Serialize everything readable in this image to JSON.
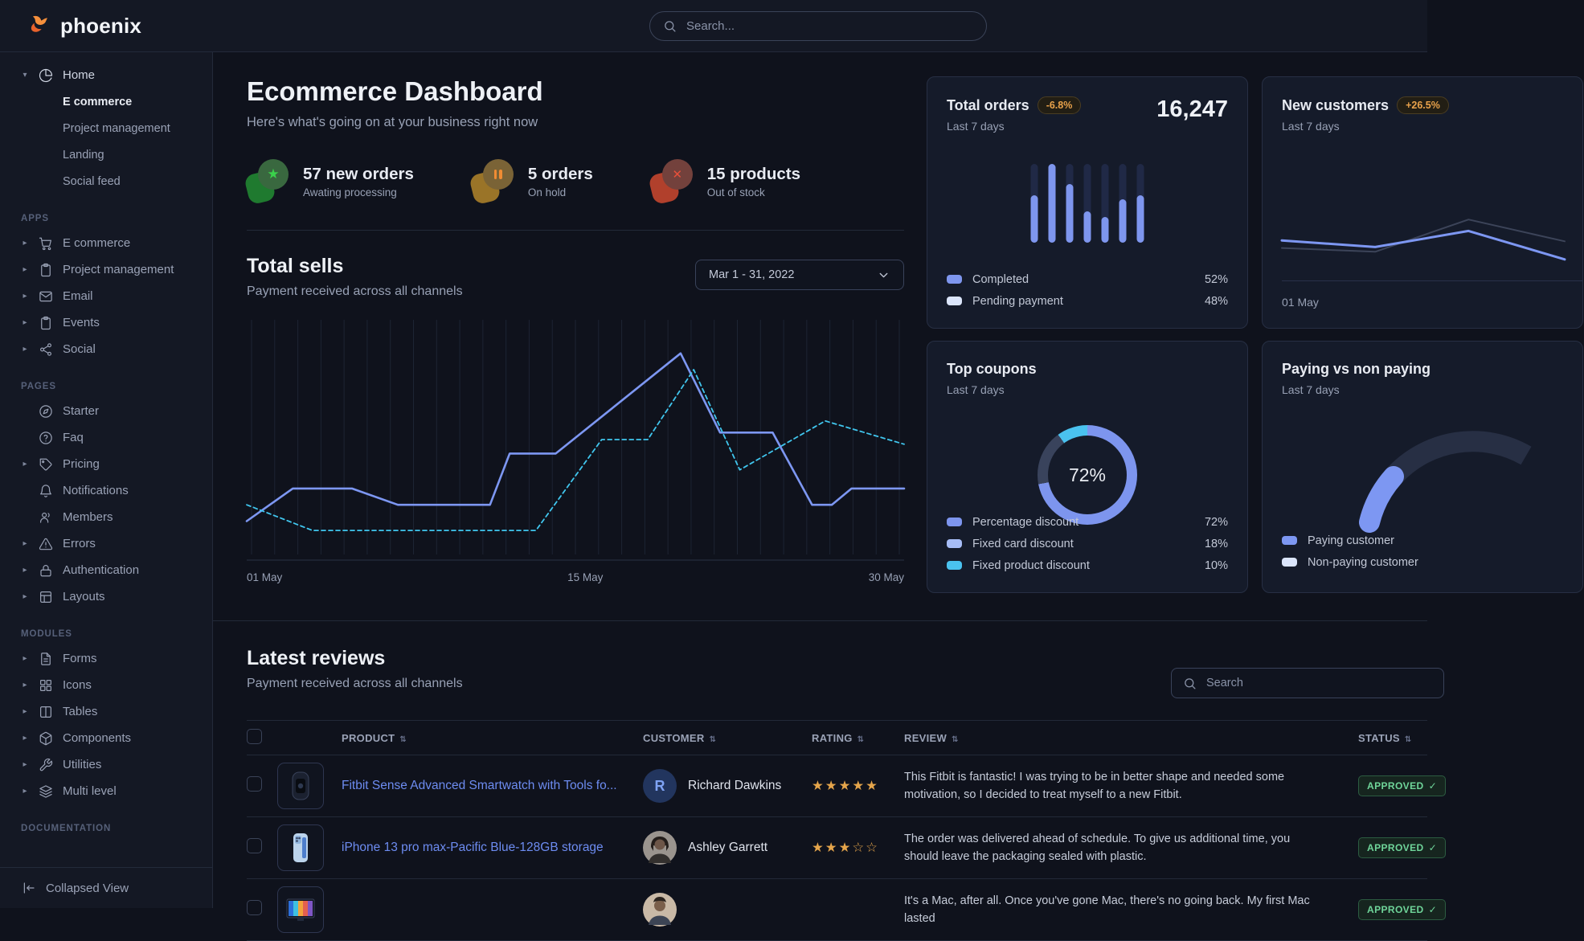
{
  "brand": {
    "name": "phoenix"
  },
  "navbar": {
    "search_placeholder": "Search..."
  },
  "sidebar": {
    "home": {
      "label": "Home",
      "icon": "pie-chart-icon",
      "children": [
        {
          "label": "E commerce",
          "active": true
        },
        {
          "label": "Project management",
          "active": false
        },
        {
          "label": "Landing",
          "active": false
        },
        {
          "label": "Social feed",
          "active": false
        }
      ]
    },
    "sections": [
      {
        "label": "APPS",
        "items": [
          {
            "label": "E commerce",
            "icon": "cart-icon",
            "caret": true
          },
          {
            "label": "Project management",
            "icon": "clipboard-icon",
            "caret": true
          },
          {
            "label": "Email",
            "icon": "mail-icon",
            "caret": true
          },
          {
            "label": "Events",
            "icon": "clipboard-icon",
            "caret": true
          },
          {
            "label": "Social",
            "icon": "share-icon",
            "caret": true
          }
        ]
      },
      {
        "label": "PAGES",
        "items": [
          {
            "label": "Starter",
            "icon": "compass-icon",
            "caret": false
          },
          {
            "label": "Faq",
            "icon": "help-circle-icon",
            "caret": false
          },
          {
            "label": "Pricing",
            "icon": "tag-icon",
            "caret": true
          },
          {
            "label": "Notifications",
            "icon": "bell-icon",
            "caret": false
          },
          {
            "label": "Members",
            "icon": "users-icon",
            "caret": false
          },
          {
            "label": "Errors",
            "icon": "alert-triangle-icon",
            "caret": true
          },
          {
            "label": "Authentication",
            "icon": "lock-icon",
            "caret": true
          },
          {
            "label": "Layouts",
            "icon": "layout-icon",
            "caret": true
          }
        ]
      },
      {
        "label": "MODULES",
        "items": [
          {
            "label": "Forms",
            "icon": "file-text-icon",
            "caret": true
          },
          {
            "label": "Icons",
            "icon": "grid-icon",
            "caret": true
          },
          {
            "label": "Tables",
            "icon": "columns-icon",
            "caret": true
          },
          {
            "label": "Components",
            "icon": "box-icon",
            "caret": true
          },
          {
            "label": "Utilities",
            "icon": "wrench-icon",
            "caret": true
          },
          {
            "label": "Multi level",
            "icon": "layers-icon",
            "caret": true
          }
        ]
      },
      {
        "label": "DOCUMENTATION",
        "items": []
      }
    ],
    "footer": {
      "label": "Collapsed View",
      "icon": "collapse-left-icon"
    }
  },
  "page": {
    "title": "Ecommerce Dashboard",
    "subtitle": "Here's what's going on at your business right now"
  },
  "stats": [
    {
      "title": "57 new orders",
      "subtitle": "Awating processing",
      "icon": "star-icon",
      "theme": "green"
    },
    {
      "title": "5 orders",
      "subtitle": "On hold",
      "icon": "pause-icon",
      "theme": "orange"
    },
    {
      "title": "15 products",
      "subtitle": "Out of stock",
      "icon": "x-icon",
      "theme": "red"
    }
  ],
  "total_sells": {
    "title": "Total sells",
    "subtitle": "Payment received across all channels",
    "date_range": "Mar 1 - 31, 2022",
    "chart_data": {
      "type": "line",
      "x_ticks": [
        "01 May",
        "15 May",
        "30 May"
      ],
      "gridlines": 29,
      "grid_color": "#1d2433",
      "series": [
        {
          "name": "current",
          "style": "solid",
          "color": "#7d97f2",
          "points": [
            [
              0,
              85
            ],
            [
              7,
              71
            ],
            [
              16,
              71
            ],
            [
              23,
              78
            ],
            [
              37,
              78
            ],
            [
              40,
              56
            ],
            [
              47,
              56
            ],
            [
              66,
              13
            ],
            [
              72,
              47
            ],
            [
              80,
              47
            ],
            [
              86,
              78
            ],
            [
              89,
              78
            ],
            [
              92,
              71
            ],
            [
              100,
              71
            ]
          ]
        },
        {
          "name": "previous",
          "style": "dashed",
          "color": "#40c6ee",
          "points": [
            [
              0,
              78
            ],
            [
              10,
              89
            ],
            [
              44,
              89
            ],
            [
              54,
              50
            ],
            [
              61,
              50
            ],
            [
              68,
              20
            ],
            [
              75,
              63
            ],
            [
              88,
              42
            ],
            [
              100,
              52
            ]
          ]
        }
      ]
    }
  },
  "cards": {
    "total_orders": {
      "title": "Total orders",
      "badge": "-6.8%",
      "period": "Last 7 days",
      "value": "16,247",
      "chart_data": {
        "type": "bar",
        "values": [
          60,
          100,
          75,
          40,
          33,
          55,
          60
        ],
        "ylim": [
          0,
          100
        ],
        "fill_color": "#7e96ee",
        "track_color": "#202946"
      },
      "legend": [
        {
          "label": "Completed",
          "value": "52%",
          "color": "#7e96ee"
        },
        {
          "label": "Pending payment",
          "value": "48%",
          "color": "#dbe5fb"
        }
      ]
    },
    "new_customers": {
      "title": "New customers",
      "badge": "+26.5%",
      "period": "Last 7 days",
      "x_label": "01 May",
      "chart_data": {
        "type": "line",
        "series": [
          {
            "name": "previous",
            "color": "#3c4459",
            "points": [
              [
                0,
                70
              ],
              [
                33,
                74
              ],
              [
                66,
                40
              ],
              [
                100,
                63
              ]
            ]
          },
          {
            "name": "current",
            "color": "#7d97f2",
            "points": [
              [
                0,
                62
              ],
              [
                33,
                69
              ],
              [
                66,
                52
              ],
              [
                100,
                82
              ]
            ]
          }
        ]
      }
    },
    "top_coupons": {
      "title": "Top coupons",
      "period": "Last 7 days",
      "center_value": "72%",
      "chart_data": {
        "type": "pie",
        "slices": [
          {
            "label": "Percentage discount",
            "value": 72,
            "ring_color": "#7d95ee"
          },
          {
            "label": "Fixed card discount",
            "value": 18,
            "ring_color": "#39435c"
          },
          {
            "label": "Fixed product discount",
            "value": 10,
            "ring_color": "#4ac2ef"
          }
        ]
      },
      "legend": [
        {
          "label": "Percentage discount",
          "value": "72%",
          "color": "#7d95ee"
        },
        {
          "label": "Fixed card discount",
          "value": "18%",
          "color": "#a7bdf7"
        },
        {
          "label": "Fixed product discount",
          "value": "10%",
          "color": "#4ac2ef"
        }
      ]
    },
    "paying_vs_non_paying": {
      "title": "Paying vs non paying",
      "period": "Last 7 days",
      "chart_data": {
        "type": "pie",
        "slices": [
          {
            "label": "Paying customer",
            "ring_color": "#7d97f2"
          },
          {
            "label": "Non-paying customer",
            "ring_color": "#272f44"
          }
        ]
      },
      "legend": [
        {
          "label": "Paying customer",
          "color": "#7d97f2"
        },
        {
          "label": "Non-paying customer",
          "color": "#dbe5fb"
        }
      ]
    }
  },
  "reviews": {
    "title": "Latest reviews",
    "subtitle": "Payment received across all channels",
    "search_placeholder": "Search",
    "columns": [
      "PRODUCT",
      "CUSTOMER",
      "RATING",
      "REVIEW",
      "STATUS"
    ],
    "rows": [
      {
        "product": "Fitbit Sense Advanced Smartwatch with Tools fo...",
        "image": "smartwatch-thumb",
        "customer": "Richard Dawkins",
        "avatar": "initial-R",
        "stars": "★★★★★",
        "review": "This Fitbit is fantastic! I was trying to be in better shape and needed some motivation, so I decided to treat myself to a new Fitbit.",
        "status": "APPROVED"
      },
      {
        "product": "iPhone 13 pro max-Pacific Blue-128GB storage",
        "image": "iphone-thumb",
        "customer": "Ashley Garrett",
        "avatar": "photo-woman",
        "stars": "★★★☆☆",
        "review": "The order was delivered ahead of schedule. To give us additional time, you should leave the packaging sealed with plastic.",
        "status": "APPROVED"
      },
      {
        "product": "",
        "image": "imac-thumb",
        "customer": "",
        "avatar": "photo-man",
        "stars": "",
        "review": "It's a Mac, after all. Once you've gone Mac, there's no going back. My first Mac lasted",
        "status": "APPROVED"
      }
    ]
  }
}
